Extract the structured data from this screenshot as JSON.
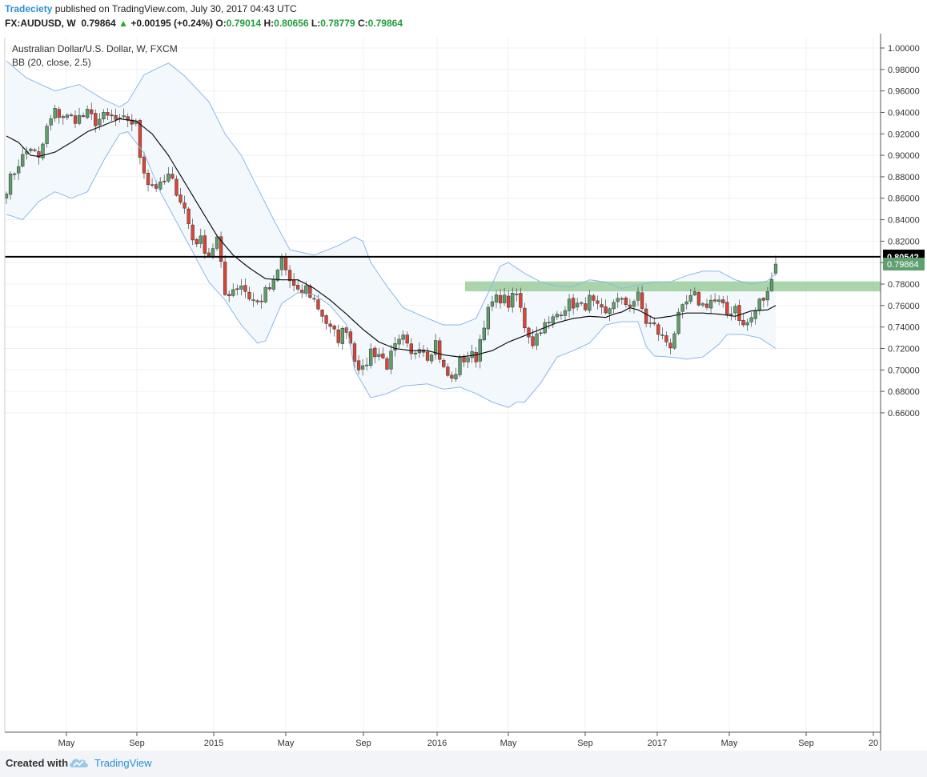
{
  "header": {
    "author": "Tradeciety",
    "published_text": "published on TradingView.com, July 30, 2017 04:43 UTC",
    "symbol": "FX:AUDUSD, W",
    "last": "0.79864",
    "change_arrow": "▲",
    "change": "+0.00195 (+0.24%)",
    "o_label": "O:",
    "o_value": "0.79014",
    "h_label": "H:",
    "h_value": "0.80656",
    "l_label": "L:",
    "l_value": "0.78779",
    "c_label": "C:",
    "c_value": "0.79864"
  },
  "legend": {
    "title": "Australian Dollar/U.S. Dollar, W, FXCM",
    "indicator": "BB (20, close, 2.5)"
  },
  "footer": {
    "created_with": "Created with",
    "brand": "TradingView",
    "logo_icon": "tradingview-cloud-icon"
  },
  "colors": {
    "up": "#5d9e6b",
    "down": "#d64535",
    "band_line": "#8bb8e8",
    "band_fill": "#f3f8fd",
    "basis": "#111111",
    "zone": "#8fc78f",
    "level": "#000000",
    "price_badge": "#5fa06f"
  },
  "chart_data": {
    "type": "candlestick",
    "title": "Australian Dollar/U.S. Dollar, W, FXCM",
    "interval": "W",
    "ylim": [
      0.65,
      1.005
    ],
    "y_ticks": [
      "1.00000",
      "0.98000",
      "0.96000",
      "0.94000",
      "0.92000",
      "0.90000",
      "0.88000",
      "0.86000",
      "0.84000",
      "0.82000",
      "0.80000",
      "0.78000",
      "0.76000",
      "0.74000",
      "0.72000",
      "0.70000",
      "0.68000",
      "0.66000"
    ],
    "x_ticks": [
      "May",
      "Sep",
      "2015",
      "May",
      "Sep",
      "2016",
      "May",
      "Sep",
      "2017",
      "May",
      "Sep",
      "20"
    ],
    "horizontal_level": {
      "value": 0.80542,
      "label": "0.80542"
    },
    "last_price": {
      "value": 0.79864,
      "label": "0.79864"
    },
    "resistance_zone": {
      "from": 0.7732,
      "to": 0.7825
    },
    "close_path": [
      [
        0,
        0.87
      ],
      [
        3,
        0.893
      ],
      [
        6,
        0.908
      ],
      [
        8,
        0.895
      ],
      [
        10,
        0.925
      ],
      [
        12,
        0.94
      ],
      [
        15,
        0.935
      ],
      [
        18,
        0.935
      ],
      [
        20,
        0.938
      ],
      [
        22,
        0.932
      ],
      [
        24,
        0.935
      ],
      [
        26,
        0.935
      ],
      [
        28,
        0.93
      ],
      [
        30,
        0.934
      ],
      [
        32,
        0.928
      ],
      [
        33,
        0.9
      ],
      [
        35,
        0.875
      ],
      [
        38,
        0.87
      ],
      [
        40,
        0.88
      ],
      [
        42,
        0.868
      ],
      [
        44,
        0.85
      ],
      [
        46,
        0.822
      ],
      [
        48,
        0.82
      ],
      [
        50,
        0.808
      ],
      [
        52,
        0.822
      ],
      [
        54,
        0.77
      ],
      [
        56,
        0.776
      ],
      [
        58,
        0.78
      ],
      [
        60,
        0.768
      ],
      [
        62,
        0.762
      ],
      [
        64,
        0.772
      ],
      [
        66,
        0.78
      ],
      [
        68,
        0.803
      ],
      [
        70,
        0.783
      ],
      [
        72,
        0.77
      ],
      [
        74,
        0.776
      ],
      [
        76,
        0.765
      ],
      [
        78,
        0.752
      ],
      [
        80,
        0.737
      ],
      [
        82,
        0.73
      ],
      [
        84,
        0.74
      ],
      [
        86,
        0.712
      ],
      [
        88,
        0.698
      ],
      [
        90,
        0.718
      ],
      [
        92,
        0.715
      ],
      [
        94,
        0.705
      ],
      [
        96,
        0.72
      ],
      [
        98,
        0.728
      ],
      [
        100,
        0.712
      ],
      [
        102,
        0.725
      ],
      [
        104,
        0.714
      ],
      [
        106,
        0.726
      ],
      [
        108,
        0.7
      ],
      [
        110,
        0.69
      ],
      [
        112,
        0.708
      ],
      [
        114,
        0.713
      ],
      [
        116,
        0.712
      ],
      [
        118,
        0.745
      ],
      [
        120,
        0.762
      ],
      [
        122,
        0.768
      ],
      [
        124,
        0.762
      ],
      [
        126,
        0.77
      ],
      [
        128,
        0.742
      ],
      [
        130,
        0.726
      ],
      [
        132,
        0.74
      ],
      [
        134,
        0.742
      ],
      [
        136,
        0.752
      ],
      [
        138,
        0.76
      ],
      [
        140,
        0.762
      ],
      [
        142,
        0.758
      ],
      [
        144,
        0.765
      ],
      [
        146,
        0.756
      ],
      [
        148,
        0.75
      ],
      [
        150,
        0.766
      ],
      [
        152,
        0.762
      ],
      [
        154,
        0.762
      ],
      [
        156,
        0.768
      ],
      [
        158,
        0.745
      ],
      [
        160,
        0.74
      ],
      [
        162,
        0.73
      ],
      [
        164,
        0.724
      ],
      [
        166,
        0.748
      ],
      [
        168,
        0.762
      ],
      [
        170,
        0.768
      ],
      [
        172,
        0.76
      ],
      [
        174,
        0.765
      ],
      [
        176,
        0.762
      ],
      [
        178,
        0.752
      ],
      [
        180,
        0.76
      ],
      [
        182,
        0.74
      ],
      [
        184,
        0.748
      ],
      [
        186,
        0.763
      ],
      [
        188,
        0.77
      ],
      [
        189,
        0.79
      ],
      [
        190,
        0.798
      ]
    ],
    "upper_band_path": [
      [
        0,
        0.988
      ],
      [
        5,
        0.972
      ],
      [
        12,
        0.96
      ],
      [
        18,
        0.966
      ],
      [
        24,
        0.952
      ],
      [
        28,
        0.945
      ],
      [
        30,
        0.95
      ],
      [
        34,
        0.975
      ],
      [
        40,
        0.986
      ],
      [
        44,
        0.974
      ],
      [
        50,
        0.95
      ],
      [
        54,
        0.92
      ],
      [
        58,
        0.9
      ],
      [
        62,
        0.87
      ],
      [
        66,
        0.84
      ],
      [
        70,
        0.812
      ],
      [
        76,
        0.807
      ],
      [
        82,
        0.816
      ],
      [
        86,
        0.824
      ],
      [
        88,
        0.82
      ],
      [
        90,
        0.8
      ],
      [
        94,
        0.778
      ],
      [
        98,
        0.758
      ],
      [
        104,
        0.748
      ],
      [
        108,
        0.742
      ],
      [
        112,
        0.742
      ],
      [
        116,
        0.748
      ],
      [
        120,
        0.78
      ],
      [
        122,
        0.797
      ],
      [
        124,
        0.8
      ],
      [
        128,
        0.79
      ],
      [
        132,
        0.782
      ],
      [
        136,
        0.778
      ],
      [
        140,
        0.778
      ],
      [
        144,
        0.784
      ],
      [
        148,
        0.782
      ],
      [
        152,
        0.776
      ],
      [
        156,
        0.779
      ],
      [
        160,
        0.782
      ],
      [
        164,
        0.782
      ],
      [
        168,
        0.788
      ],
      [
        172,
        0.792
      ],
      [
        176,
        0.792
      ],
      [
        180,
        0.784
      ],
      [
        184,
        0.78
      ],
      [
        188,
        0.783
      ],
      [
        190,
        0.79
      ]
    ],
    "lower_band_path": [
      [
        0,
        0.845
      ],
      [
        4,
        0.84
      ],
      [
        8,
        0.857
      ],
      [
        12,
        0.866
      ],
      [
        16,
        0.86
      ],
      [
        20,
        0.866
      ],
      [
        24,
        0.895
      ],
      [
        28,
        0.92
      ],
      [
        30,
        0.922
      ],
      [
        34,
        0.902
      ],
      [
        38,
        0.866
      ],
      [
        42,
        0.838
      ],
      [
        46,
        0.81
      ],
      [
        50,
        0.782
      ],
      [
        54,
        0.765
      ],
      [
        58,
        0.742
      ],
      [
        62,
        0.725
      ],
      [
        64,
        0.727
      ],
      [
        68,
        0.762
      ],
      [
        72,
        0.772
      ],
      [
        76,
        0.77
      ],
      [
        80,
        0.76
      ],
      [
        84,
        0.742
      ],
      [
        86,
        0.7
      ],
      [
        90,
        0.674
      ],
      [
        94,
        0.678
      ],
      [
        98,
        0.685
      ],
      [
        104,
        0.687
      ],
      [
        108,
        0.682
      ],
      [
        112,
        0.684
      ],
      [
        116,
        0.678
      ],
      [
        120,
        0.67
      ],
      [
        124,
        0.665
      ],
      [
        126,
        0.67
      ],
      [
        128,
        0.67
      ],
      [
        132,
        0.688
      ],
      [
        136,
        0.712
      ],
      [
        140,
        0.718
      ],
      [
        144,
        0.725
      ],
      [
        148,
        0.742
      ],
      [
        152,
        0.745
      ],
      [
        156,
        0.745
      ],
      [
        158,
        0.722
      ],
      [
        160,
        0.713
      ],
      [
        164,
        0.712
      ],
      [
        168,
        0.71
      ],
      [
        172,
        0.712
      ],
      [
        176,
        0.724
      ],
      [
        178,
        0.733
      ],
      [
        182,
        0.733
      ],
      [
        186,
        0.73
      ],
      [
        190,
        0.72
      ]
    ],
    "basis_path": [
      [
        0,
        0.918
      ],
      [
        3,
        0.912
      ],
      [
        6,
        0.9
      ],
      [
        8,
        0.899
      ],
      [
        12,
        0.903
      ],
      [
        16,
        0.912
      ],
      [
        20,
        0.922
      ],
      [
        24,
        0.928
      ],
      [
        28,
        0.934
      ],
      [
        32,
        0.932
      ],
      [
        36,
        0.92
      ],
      [
        40,
        0.9
      ],
      [
        44,
        0.875
      ],
      [
        48,
        0.85
      ],
      [
        52,
        0.825
      ],
      [
        56,
        0.807
      ],
      [
        60,
        0.795
      ],
      [
        64,
        0.785
      ],
      [
        68,
        0.784
      ],
      [
        72,
        0.784
      ],
      [
        76,
        0.776
      ],
      [
        80,
        0.765
      ],
      [
        84,
        0.752
      ],
      [
        88,
        0.738
      ],
      [
        92,
        0.726
      ],
      [
        96,
        0.72
      ],
      [
        100,
        0.718
      ],
      [
        104,
        0.718
      ],
      [
        108,
        0.714
      ],
      [
        112,
        0.712
      ],
      [
        116,
        0.714
      ],
      [
        120,
        0.718
      ],
      [
        124,
        0.726
      ],
      [
        128,
        0.732
      ],
      [
        132,
        0.738
      ],
      [
        136,
        0.744
      ],
      [
        140,
        0.748
      ],
      [
        144,
        0.75
      ],
      [
        148,
        0.749
      ],
      [
        150,
        0.752
      ],
      [
        152,
        0.754
      ],
      [
        154,
        0.758
      ],
      [
        156,
        0.756
      ],
      [
        160,
        0.748
      ],
      [
        164,
        0.75
      ],
      [
        168,
        0.753
      ],
      [
        172,
        0.753
      ],
      [
        176,
        0.752
      ],
      [
        180,
        0.75
      ],
      [
        184,
        0.755
      ],
      [
        188,
        0.756
      ],
      [
        190,
        0.76
      ]
    ]
  }
}
